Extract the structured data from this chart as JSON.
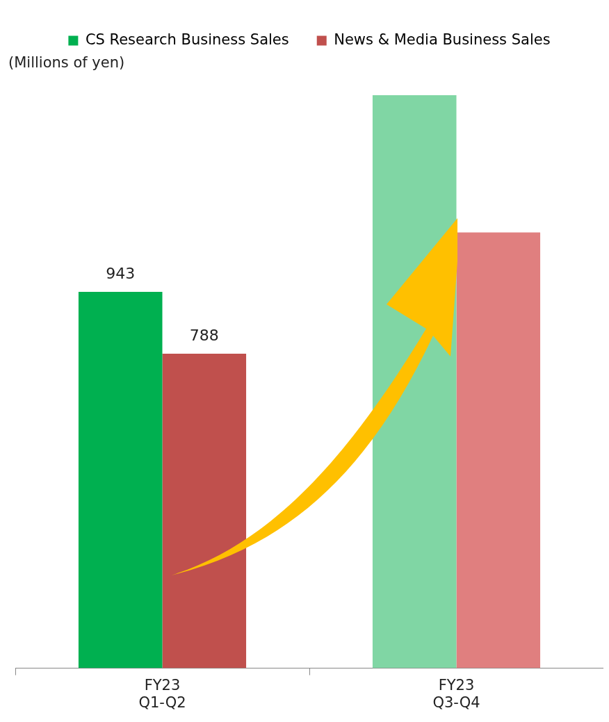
{
  "chart_data": {
    "type": "bar",
    "ylabel": "(Millions of yen)",
    "categories": [
      "FY23 Q1-Q2",
      "FY23 Q3-Q4"
    ],
    "tick_labels": "x",
    "legend": "top",
    "grid": false,
    "series": [
      {
        "name": "CS Research Business Sales",
        "color": "#00b050",
        "colors": [
          "#00b050",
          "#80d6a4"
        ],
        "values": [
          943,
          1436
        ],
        "value_labels": [
          "943",
          null
        ]
      },
      {
        "name": "News & Media Business Sales",
        "color": "#c0504d",
        "colors": [
          "#c0504d",
          "#e07f7f"
        ],
        "values": [
          788,
          1092
        ],
        "value_labels": [
          "788",
          null
        ]
      }
    ]
  }
}
